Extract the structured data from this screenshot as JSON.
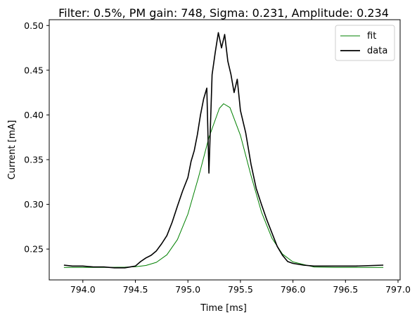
{
  "chart_data": {
    "type": "line",
    "title": "Filter: 0.5%, PM gain: 748, Sigma: 0.231, Amplitude: 0.234",
    "xlabel": "Time [ms]",
    "ylabel": "Current [mA]",
    "xlim": [
      793.68,
      797.02
    ],
    "ylim": [
      0.2155,
      0.5065
    ],
    "xticks": [
      794.0,
      794.5,
      795.0,
      795.5,
      796.0,
      796.5,
      797.0
    ],
    "xtick_labels": [
      "794.0",
      "794.5",
      "795.0",
      "795.5",
      "796.0",
      "796.5",
      "797.0"
    ],
    "yticks": [
      0.25,
      0.3,
      0.35,
      0.4,
      0.45,
      0.5
    ],
    "ytick_labels": [
      "0.25",
      "0.30",
      "0.35",
      "0.40",
      "0.45",
      "0.50"
    ],
    "grid": false,
    "legend_position": "top-right",
    "fit_model": {
      "center": 795.34,
      "sigma": 0.231,
      "amplitude": 0.234,
      "baseline": 0.2295
    },
    "series": [
      {
        "name": "fit",
        "color": "#008000",
        "x": [
          793.82,
          794.0,
          794.2,
          794.4,
          794.5,
          794.6,
          794.7,
          794.8,
          794.9,
          795.0,
          795.1,
          795.2,
          795.3,
          795.34,
          795.4,
          795.5,
          795.6,
          795.7,
          795.8,
          795.9,
          796.0,
          796.2,
          796.4,
          796.6,
          796.86
        ],
        "y": [
          0.2295,
          0.2295,
          0.2295,
          0.2297,
          0.2302,
          0.2316,
          0.2352,
          0.2436,
          0.2606,
          0.2891,
          0.3298,
          0.3748,
          0.4074,
          0.4125,
          0.4083,
          0.3772,
          0.3324,
          0.2915,
          0.2622,
          0.2444,
          0.2356,
          0.2299,
          0.2295,
          0.2295,
          0.2295
        ]
      },
      {
        "name": "data",
        "color": "#000000",
        "x": [
          793.82,
          793.9,
          794.0,
          794.1,
          794.2,
          794.3,
          794.4,
          794.5,
          794.55,
          794.6,
          794.65,
          794.7,
          794.75,
          794.8,
          794.85,
          794.9,
          794.95,
          795.0,
          795.03,
          795.06,
          795.09,
          795.12,
          795.15,
          795.18,
          795.2,
          795.23,
          795.26,
          795.29,
          795.32,
          795.35,
          795.38,
          795.41,
          795.44,
          795.47,
          795.5,
          795.55,
          795.6,
          795.65,
          795.7,
          795.75,
          795.8,
          795.85,
          795.9,
          795.95,
          796.0,
          796.1,
          796.2,
          796.4,
          796.6,
          796.86
        ],
        "y": [
          0.232,
          0.231,
          0.231,
          0.23,
          0.23,
          0.229,
          0.229,
          0.231,
          0.236,
          0.24,
          0.243,
          0.248,
          0.256,
          0.265,
          0.28,
          0.298,
          0.315,
          0.33,
          0.348,
          0.36,
          0.378,
          0.4,
          0.418,
          0.43,
          0.335,
          0.445,
          0.47,
          0.492,
          0.475,
          0.49,
          0.46,
          0.445,
          0.425,
          0.44,
          0.405,
          0.38,
          0.345,
          0.318,
          0.3,
          0.283,
          0.268,
          0.253,
          0.243,
          0.236,
          0.234,
          0.232,
          0.231,
          0.231,
          0.231,
          0.232
        ]
      }
    ]
  }
}
